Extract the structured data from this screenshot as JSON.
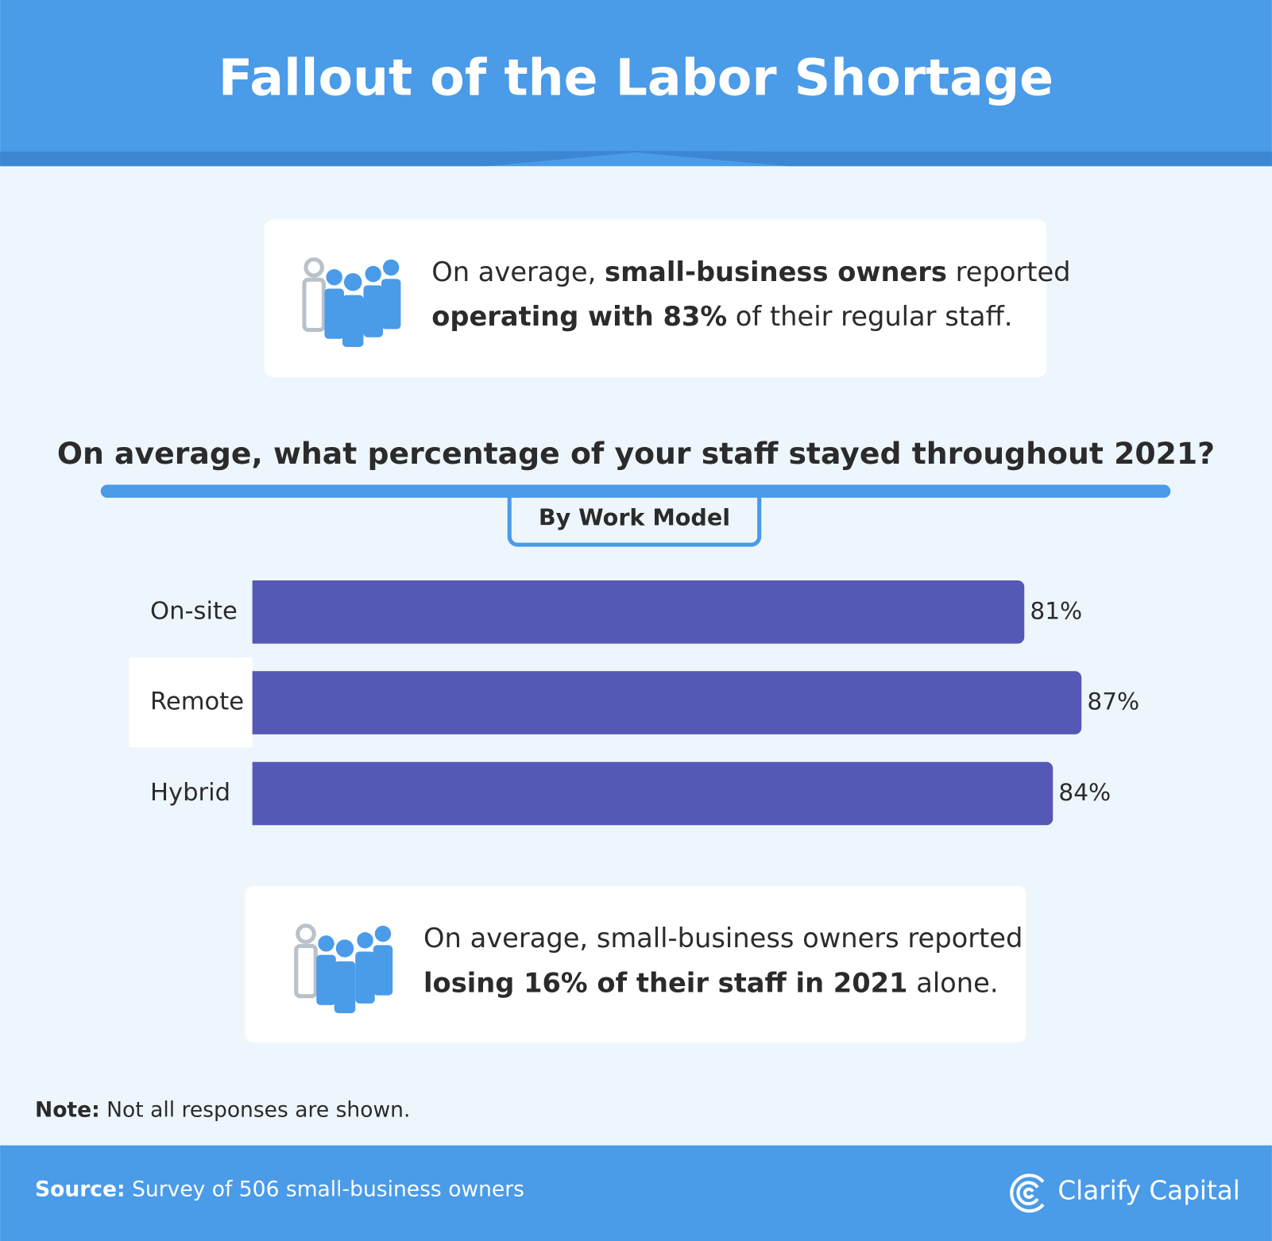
{
  "header": {
    "title": "Fallout of the Labor Shortage"
  },
  "callout_top": {
    "lines": [
      [
        "On average, ",
        "small-business owners",
        " reported"
      ],
      [
        "operating with 83%",
        " of their regular staff."
      ]
    ]
  },
  "chart_data": {
    "type": "bar",
    "title": "On average, what percentage of your staff stayed throughout 2021?",
    "subtitle": "By Work Model",
    "categories": [
      "On-site",
      "Remote",
      "Hybrid"
    ],
    "values": [
      81,
      87,
      84
    ],
    "value_labels": [
      "81%",
      "87%",
      "84%"
    ],
    "color": "#5558b5"
  },
  "callout_bottom": {
    "lines": [
      [
        "On average, small-business owners reported"
      ],
      [
        "losing 16% of their staff in 2021",
        " alone."
      ]
    ]
  },
  "note": [
    "Note:",
    " Not all responses are shown."
  ],
  "footer": {
    "source": [
      "Source:",
      " Survey of 506 small-business owners"
    ],
    "brand": "Clarify Capital"
  }
}
